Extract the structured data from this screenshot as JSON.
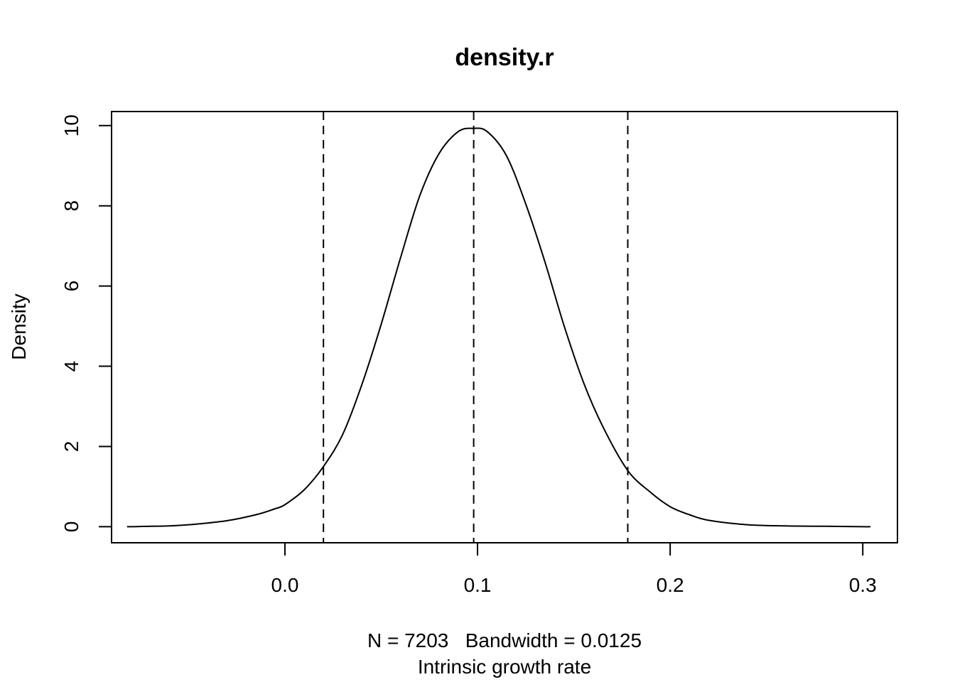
{
  "chart_data": {
    "type": "line",
    "title": "density.r",
    "xlabel_line1": "N = 7203   Bandwidth = 0.0125",
    "xlabel_line2": "Intrinsic growth rate",
    "ylabel": "Density",
    "xlim": [
      -0.09,
      0.318
    ],
    "ylim": [
      -0.4,
      10.35
    ],
    "x_ticks": [
      0.0,
      0.1,
      0.2,
      0.3
    ],
    "x_tick_labels": [
      "0.0",
      "0.1",
      "0.2",
      "0.3"
    ],
    "y_ticks": [
      0,
      2,
      4,
      6,
      8,
      10
    ],
    "y_tick_labels": [
      "0",
      "2",
      "4",
      "6",
      "8",
      "10"
    ],
    "grid": false,
    "vlines": [
      {
        "x": 0.02,
        "style": "dashed"
      },
      {
        "x": 0.098,
        "style": "dashed"
      },
      {
        "x": 0.178,
        "style": "dashed"
      }
    ],
    "series": [
      {
        "color": "#000000",
        "x": [
          -0.082,
          -0.06,
          -0.045,
          -0.03,
          -0.015,
          -0.005,
          0.0,
          0.01,
          0.02,
          0.03,
          0.04,
          0.05,
          0.06,
          0.07,
          0.08,
          0.09,
          0.098,
          0.105,
          0.115,
          0.125,
          0.135,
          0.145,
          0.155,
          0.165,
          0.178,
          0.19,
          0.2,
          0.21,
          0.22,
          0.24,
          0.26,
          0.28,
          0.3,
          0.304
        ],
        "y": [
          0.0,
          0.02,
          0.07,
          0.15,
          0.3,
          0.45,
          0.55,
          0.92,
          1.5,
          2.3,
          3.55,
          5.05,
          6.7,
          8.25,
          9.3,
          9.85,
          9.93,
          9.85,
          9.25,
          8.05,
          6.6,
          5.0,
          3.6,
          2.5,
          1.4,
          0.85,
          0.5,
          0.3,
          0.16,
          0.05,
          0.02,
          0.01,
          0.0,
          0.0
        ]
      }
    ]
  }
}
